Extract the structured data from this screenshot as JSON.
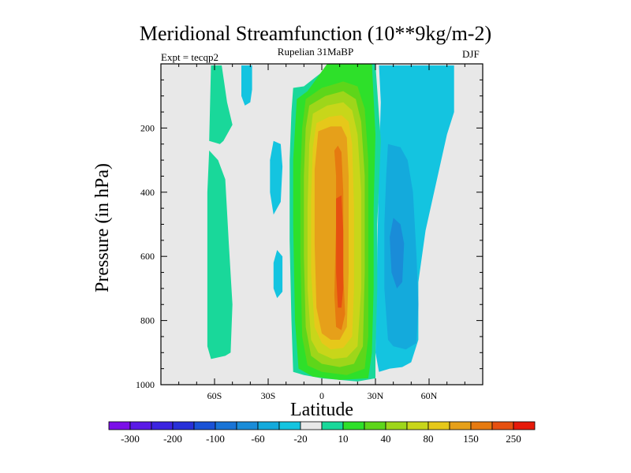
{
  "chart_data": {
    "type": "heatmap",
    "title": "Meridional Streamfunction (10**9kg/m-2)",
    "subtitle": "Rupelian  31MaBP",
    "left_string": "Expt = tecqp2",
    "right_string": "DJF",
    "xlabel": "Latitude",
    "ylabel": "Pressure (in hPa)",
    "xlim": [
      -90,
      90
    ],
    "ylim": [
      1000,
      0
    ],
    "x_ticks": [
      {
        "value": -60,
        "label": "60S"
      },
      {
        "value": -30,
        "label": "30S"
      },
      {
        "value": 0,
        "label": "0"
      },
      {
        "value": 30,
        "label": "30N"
      },
      {
        "value": 60,
        "label": "60N"
      }
    ],
    "y_ticks": [
      {
        "value": 200,
        "label": "200"
      },
      {
        "value": 400,
        "label": "400"
      },
      {
        "value": 600,
        "label": "600"
      },
      {
        "value": 800,
        "label": "800"
      },
      {
        "value": 1000,
        "label": "1000"
      }
    ],
    "background_color": "#e8e8e8",
    "colorbar": {
      "levels": [
        -300,
        -250,
        -200,
        -150,
        -100,
        -80,
        -60,
        -40,
        -20,
        -10,
        10,
        20,
        40,
        60,
        80,
        100,
        150,
        200,
        250,
        300
      ],
      "labels": [
        {
          "level": -300,
          "label": "-300"
        },
        {
          "level": -200,
          "label": "-200"
        },
        {
          "level": -100,
          "label": "-100"
        },
        {
          "level": -60,
          "label": "-60"
        },
        {
          "level": -20,
          "label": "-20"
        },
        {
          "level": 10,
          "label": "10"
        },
        {
          "level": 40,
          "label": "40"
        },
        {
          "level": 80,
          "label": "80"
        },
        {
          "level": 150,
          "label": "150"
        },
        {
          "level": 250,
          "label": "250"
        }
      ],
      "colors": [
        "#7b0fe8",
        "#5a1ae6",
        "#3c24e0",
        "#2830d8",
        "#1a52d6",
        "#1974d6",
        "#1a8cd8",
        "#14aadc",
        "#14c4e0",
        "#e8e8e8",
        "#19d89a",
        "#2ee02a",
        "#5ed61a",
        "#9ed61a",
        "#c8d61a",
        "#e6c81a",
        "#e6a01a",
        "#e67a10",
        "#e65010",
        "#e61a0a"
      ]
    },
    "regions": [
      {
        "level": 10,
        "color": "#19d89a",
        "points": [
          [
            -62,
            5
          ],
          [
            -56,
            5
          ],
          [
            -53,
            120
          ],
          [
            -50,
            190
          ],
          [
            -55,
            240
          ],
          [
            -57,
            250
          ],
          [
            -63,
            240
          ]
        ]
      },
      {
        "level": 10,
        "color": "#19d89a",
        "points": [
          [
            -63,
            270
          ],
          [
            -58,
            300
          ],
          [
            -54,
            360
          ],
          [
            -52,
            560
          ],
          [
            -50,
            750
          ],
          [
            -51,
            900
          ],
          [
            -54,
            910
          ],
          [
            -58,
            915
          ],
          [
            -62,
            920
          ],
          [
            -64,
            880
          ],
          [
            -64,
            600
          ],
          [
            -64,
            400
          ]
        ]
      },
      {
        "level": -20,
        "color": "#14c4e0",
        "points": [
          [
            -45,
            5
          ],
          [
            -39,
            5
          ],
          [
            -39,
            80
          ],
          [
            -40,
            120
          ],
          [
            -43,
            130
          ],
          [
            -45,
            100
          ]
        ]
      },
      {
        "level": -20,
        "color": "#14c4e0",
        "points": [
          [
            -27,
            240
          ],
          [
            -23,
            250
          ],
          [
            -22,
            320
          ],
          [
            -23,
            430
          ],
          [
            -27,
            470
          ],
          [
            -29,
            400
          ],
          [
            -29,
            300
          ]
        ]
      },
      {
        "level": -20,
        "color": "#14c4e0",
        "points": [
          [
            -25,
            580
          ],
          [
            -22,
            600
          ],
          [
            -22,
            710
          ],
          [
            -25,
            730
          ],
          [
            -27,
            700
          ],
          [
            -27,
            620
          ]
        ]
      },
      {
        "level": -20,
        "color": "#14c4e0",
        "points": [
          [
            32,
            5
          ],
          [
            50,
            5
          ],
          [
            58,
            5
          ],
          [
            68,
            5
          ],
          [
            74,
            5
          ],
          [
            74,
            150
          ],
          [
            70,
            220
          ],
          [
            66,
            320
          ],
          [
            58,
            520
          ],
          [
            54,
            680
          ],
          [
            54,
            860
          ],
          [
            50,
            930
          ],
          [
            45,
            945
          ],
          [
            38,
            950
          ],
          [
            32,
            960
          ],
          [
            30,
            900
          ],
          [
            31,
            600
          ],
          [
            32,
            300
          ],
          [
            33,
            120
          ]
        ]
      },
      {
        "level": -40,
        "color": "#14aadc",
        "points": [
          [
            37,
            250
          ],
          [
            44,
            260
          ],
          [
            48,
            300
          ],
          [
            51,
            400
          ],
          [
            53,
            600
          ],
          [
            54,
            750
          ],
          [
            53,
            870
          ],
          [
            47,
            890
          ],
          [
            40,
            880
          ],
          [
            37,
            860
          ],
          [
            35,
            700
          ],
          [
            35,
            500
          ],
          [
            36,
            350
          ]
        ]
      },
      {
        "level": -60,
        "color": "#1a8cd8",
        "points": [
          [
            40,
            480
          ],
          [
            44,
            500
          ],
          [
            46,
            560
          ],
          [
            45,
            680
          ],
          [
            42,
            700
          ],
          [
            39,
            650
          ],
          [
            38,
            540
          ]
        ]
      },
      {
        "level": 10,
        "color": "#19d89a",
        "points": [
          [
            -16,
            75
          ],
          [
            -10,
            70
          ],
          [
            6,
            0
          ],
          [
            30,
            0
          ],
          [
            33,
            240
          ],
          [
            31,
            500
          ],
          [
            31,
            700
          ],
          [
            30,
            900
          ],
          [
            30,
            980
          ],
          [
            20,
            990
          ],
          [
            0,
            980
          ],
          [
            -10,
            970
          ],
          [
            -16,
            960
          ],
          [
            -17,
            800
          ],
          [
            -18,
            550
          ],
          [
            -18,
            300
          ],
          [
            -17,
            150
          ]
        ]
      },
      {
        "level": 20,
        "color": "#2ee02a",
        "points": [
          [
            -14,
            110
          ],
          [
            -8,
            85
          ],
          [
            3,
            0
          ],
          [
            28,
            0
          ],
          [
            30,
            220
          ],
          [
            29,
            450
          ],
          [
            29,
            700
          ],
          [
            28,
            900
          ],
          [
            26,
            980
          ],
          [
            10,
            985
          ],
          [
            -5,
            975
          ],
          [
            -13,
            950
          ],
          [
            -15,
            800
          ],
          [
            -16,
            500
          ],
          [
            -16,
            300
          ]
        ]
      },
      {
        "level": 40,
        "color": "#5ed61a",
        "points": [
          [
            -9,
            110
          ],
          [
            0,
            75
          ],
          [
            12,
            55
          ],
          [
            20,
            70
          ],
          [
            24,
            140
          ],
          [
            26,
            300
          ],
          [
            26,
            600
          ],
          [
            26,
            850
          ],
          [
            24,
            950
          ],
          [
            14,
            970
          ],
          [
            0,
            960
          ],
          [
            -8,
            940
          ],
          [
            -11,
            850
          ],
          [
            -12,
            600
          ],
          [
            -12,
            350
          ],
          [
            -11,
            200
          ]
        ]
      },
      {
        "level": 60,
        "color": "#9ed61a",
        "points": [
          [
            -7,
            130
          ],
          [
            2,
            100
          ],
          [
            12,
            85
          ],
          [
            19,
            110
          ],
          [
            22,
            180
          ],
          [
            24,
            350
          ],
          [
            24,
            650
          ],
          [
            23,
            880
          ],
          [
            18,
            935
          ],
          [
            10,
            945
          ],
          [
            0,
            935
          ],
          [
            -6,
            910
          ],
          [
            -9,
            820
          ],
          [
            -10,
            600
          ],
          [
            -10,
            350
          ],
          [
            -9,
            200
          ]
        ]
      },
      {
        "level": 80,
        "color": "#c8d61a",
        "points": [
          [
            -5,
            155
          ],
          [
            3,
            130
          ],
          [
            12,
            120
          ],
          [
            17,
            145
          ],
          [
            20,
            220
          ],
          [
            22,
            400
          ],
          [
            22,
            700
          ],
          [
            20,
            880
          ],
          [
            14,
            915
          ],
          [
            6,
            920
          ],
          [
            -2,
            900
          ],
          [
            -6,
            860
          ],
          [
            -8,
            700
          ],
          [
            -8,
            450
          ],
          [
            -7,
            250
          ]
        ]
      },
      {
        "level": 100,
        "color": "#e6c81a",
        "points": [
          [
            -3,
            185
          ],
          [
            4,
            165
          ],
          [
            11,
            160
          ],
          [
            15,
            180
          ],
          [
            17,
            250
          ],
          [
            18,
            450
          ],
          [
            18,
            700
          ],
          [
            17,
            850
          ],
          [
            12,
            885
          ],
          [
            5,
            890
          ],
          [
            0,
            870
          ],
          [
            -4,
            820
          ],
          [
            -6,
            650
          ],
          [
            -6,
            420
          ],
          [
            -5,
            260
          ]
        ]
      },
      {
        "level": 150,
        "color": "#e6a01a",
        "points": [
          [
            -2,
            210
          ],
          [
            5,
            195
          ],
          [
            11,
            195
          ],
          [
            14,
            230
          ],
          [
            15,
            350
          ],
          [
            15,
            650
          ],
          [
            14,
            820
          ],
          [
            10,
            860
          ],
          [
            5,
            860
          ],
          [
            0,
            840
          ],
          [
            -3,
            760
          ],
          [
            -4,
            560
          ],
          [
            -4,
            330
          ]
        ]
      },
      {
        "level": 200,
        "color": "#e67a10",
        "points": [
          [
            7,
            270
          ],
          [
            9,
            255
          ],
          [
            11,
            275
          ],
          [
            12,
            400
          ],
          [
            12,
            650
          ],
          [
            13,
            780
          ],
          [
            11,
            830
          ],
          [
            8,
            820
          ],
          [
            7,
            720
          ],
          [
            8,
            500
          ],
          [
            8,
            350
          ]
        ]
      },
      {
        "level": 250,
        "color": "#e65010",
        "points": [
          [
            8,
            420
          ],
          [
            11,
            410
          ],
          [
            12,
            520
          ],
          [
            12,
            700
          ],
          [
            11,
            760
          ],
          [
            9,
            760
          ],
          [
            8,
            650
          ],
          [
            8,
            500
          ]
        ]
      }
    ]
  }
}
